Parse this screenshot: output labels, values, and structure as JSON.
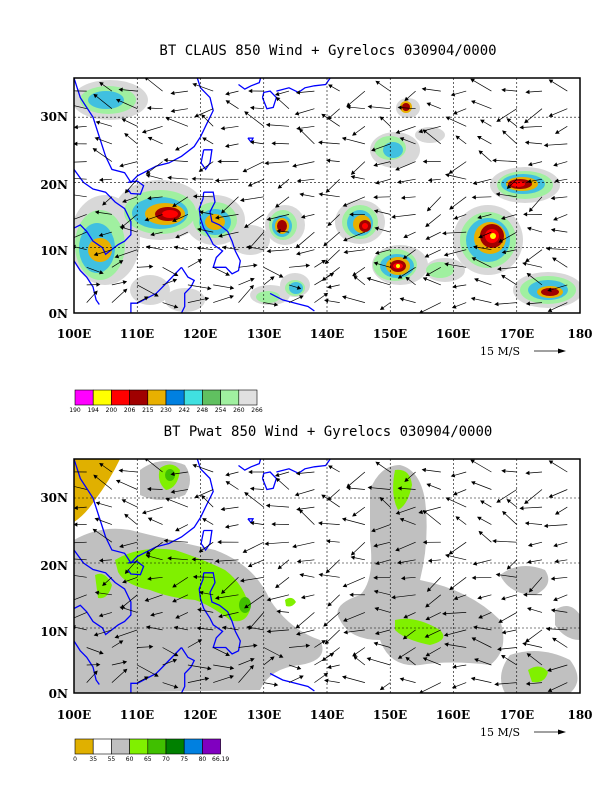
{
  "panels": [
    {
      "id": "claus",
      "title": "BT CLAUS 850 Wind + Gyrelocs 030904/0000",
      "y_ticks": [
        "30N",
        "20N",
        "10N",
        "0N"
      ],
      "x_ticks": [
        "100E",
        "110E",
        "120E",
        "130E",
        "140E",
        "150E",
        "160E",
        "170E",
        "180"
      ],
      "reference_vector": "15 M/S",
      "colorbar_labels": [
        "190",
        "194",
        "200",
        "206",
        "215",
        "230",
        "242",
        "248",
        "254",
        "260",
        "266"
      ],
      "colorbar_colors": [
        "#ff00ff",
        "#ffff00",
        "#ff0000",
        "#a00000",
        "#e8b000",
        "#0080e0",
        "#40e0e0",
        "#60c060",
        "#a0f0a0",
        "#e0e0e0"
      ]
    },
    {
      "id": "pwat",
      "title": "BT Pwat 850 Wind + Gyrelocs 030904/0000",
      "y_ticks": [
        "30N",
        "20N",
        "10N",
        "0N"
      ],
      "x_ticks": [
        "100E",
        "110E",
        "120E",
        "130E",
        "140E",
        "150E",
        "160E",
        "170E",
        "180"
      ],
      "reference_vector": "15 M/S",
      "colorbar_labels": [
        "0",
        "35",
        "55",
        "60",
        "65",
        "70",
        "75",
        "80",
        "66.19"
      ],
      "colorbar_colors": [
        "#e0b000",
        "#ffffff",
        "#c0c0c0",
        "#80f000",
        "#40c000",
        "#008000",
        "#0080e0",
        "#8000c0"
      ]
    }
  ],
  "map_data": {
    "lon_range": [
      100,
      180
    ],
    "lat_range": [
      0,
      36
    ],
    "grid": true,
    "coastline_color": "#0000ff",
    "vector_color": "#000000"
  }
}
